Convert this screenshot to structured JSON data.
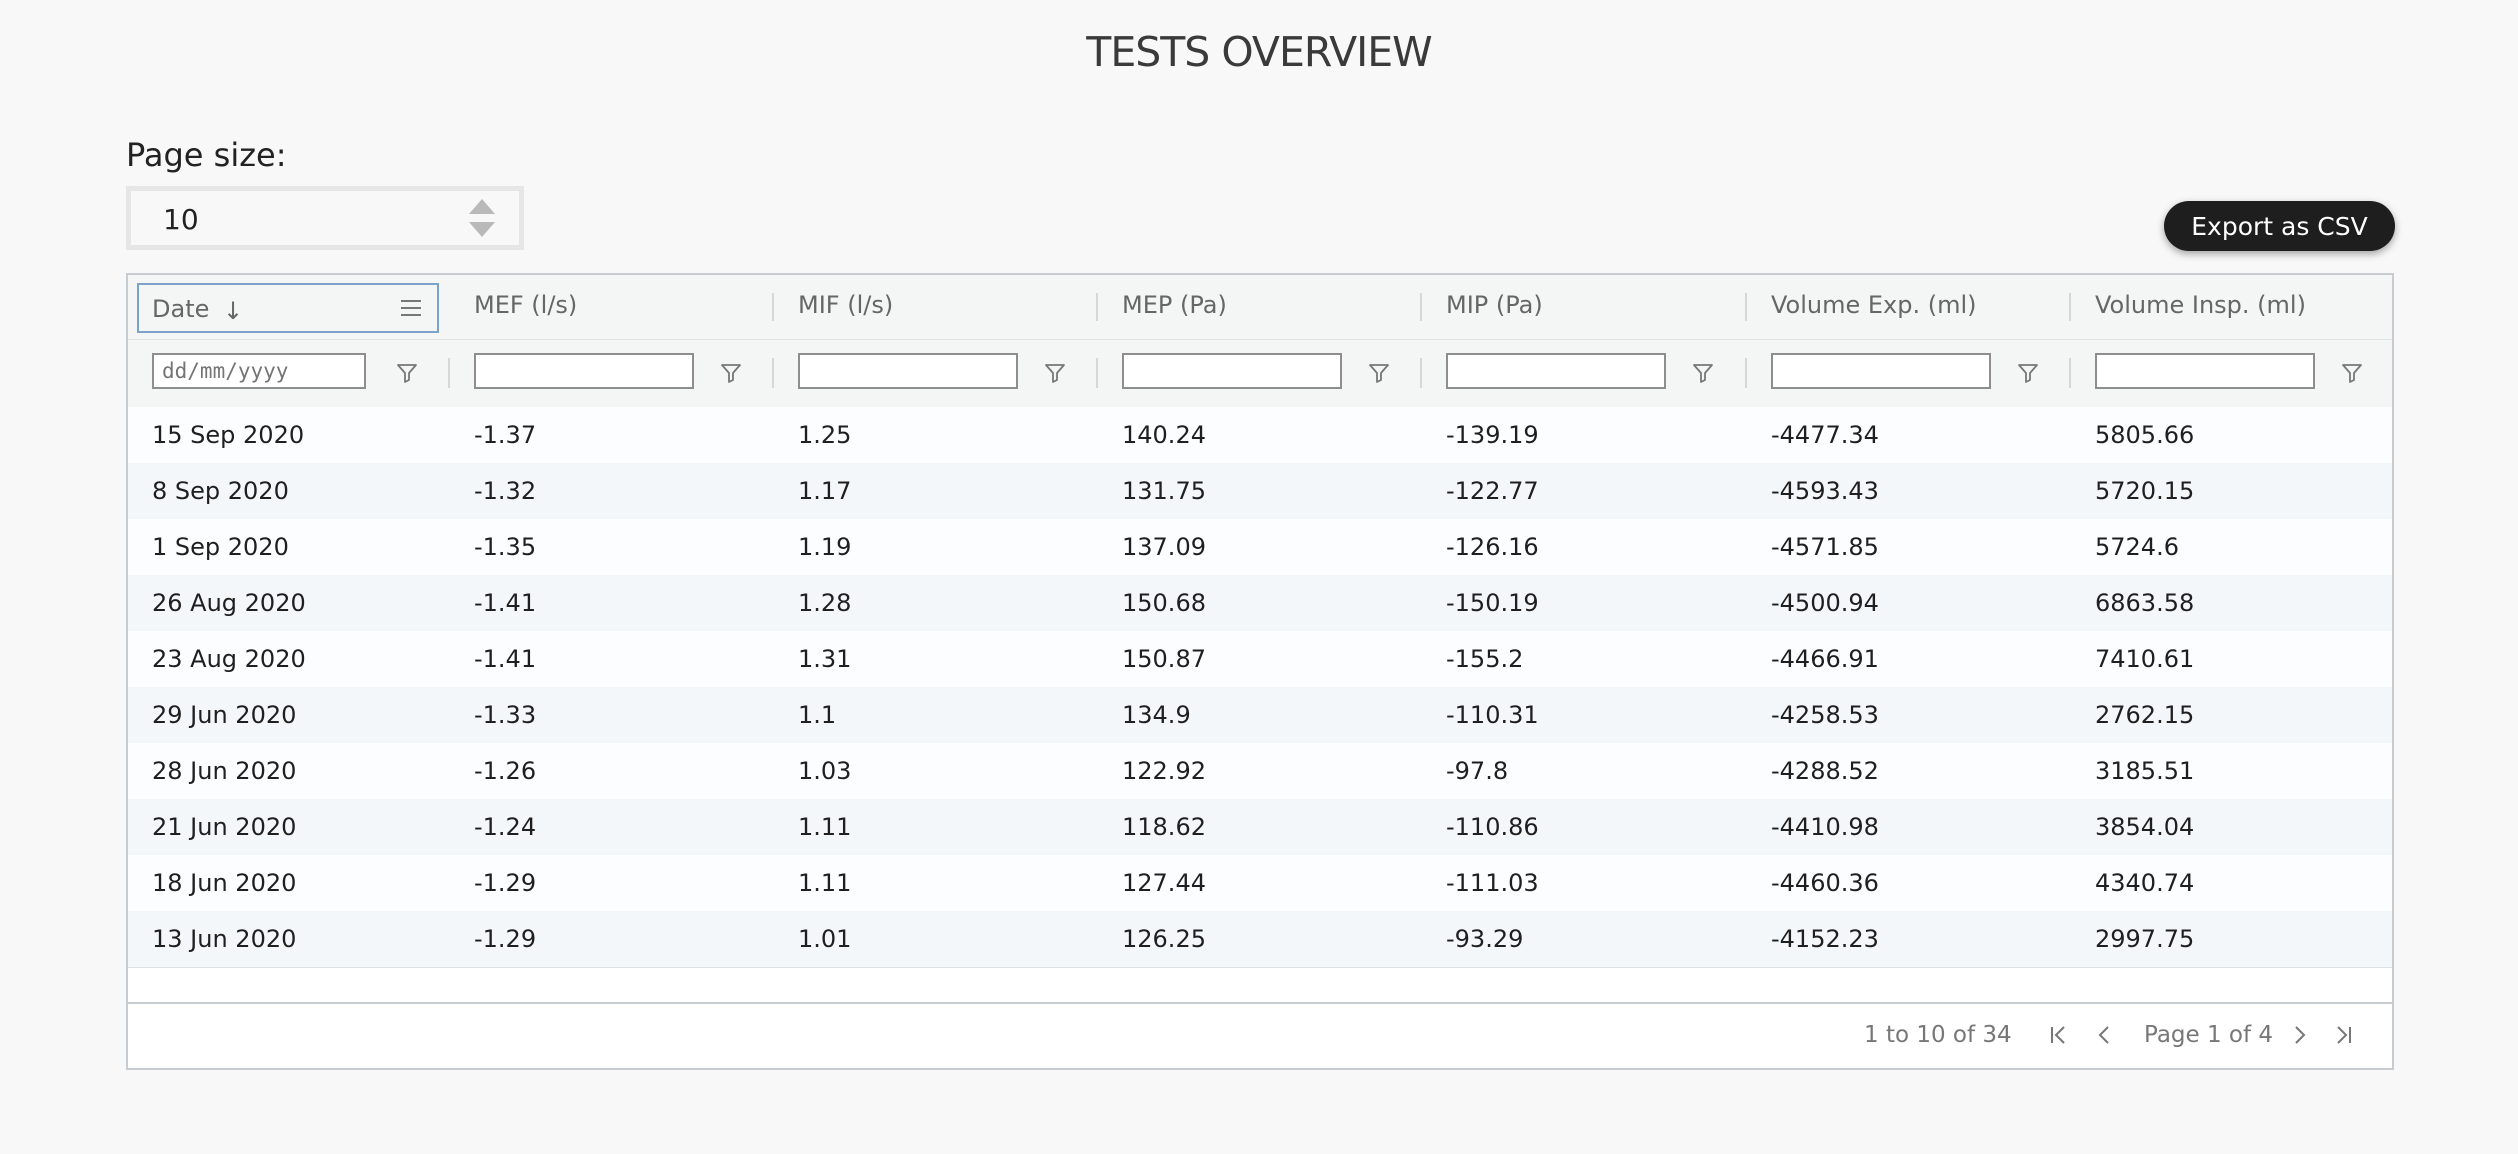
{
  "title": "TESTS OVERVIEW",
  "page_size": {
    "label": "Page size:",
    "value": "10"
  },
  "export_button": "Export as CSV",
  "columns": [
    {
      "label": "Date",
      "filter_placeholder": "dd/mm/yyyy"
    },
    {
      "label": "MEF (l/s)",
      "filter_placeholder": ""
    },
    {
      "label": "MIF (l/s)",
      "filter_placeholder": ""
    },
    {
      "label": "MEP (Pa)",
      "filter_placeholder": ""
    },
    {
      "label": "MIP (Pa)",
      "filter_placeholder": ""
    },
    {
      "label": "Volume Exp. (ml)",
      "filter_placeholder": ""
    },
    {
      "label": "Volume Insp. (ml)",
      "filter_placeholder": ""
    }
  ],
  "rows": [
    [
      "15 Sep 2020",
      "-1.37",
      "1.25",
      "140.24",
      "-139.19",
      "-4477.34",
      "5805.66"
    ],
    [
      "8 Sep 2020",
      "-1.32",
      "1.17",
      "131.75",
      "-122.77",
      "-4593.43",
      "5720.15"
    ],
    [
      "1 Sep 2020",
      "-1.35",
      "1.19",
      "137.09",
      "-126.16",
      "-4571.85",
      "5724.6"
    ],
    [
      "26 Aug 2020",
      "-1.41",
      "1.28",
      "150.68",
      "-150.19",
      "-4500.94",
      "6863.58"
    ],
    [
      "23 Aug 2020",
      "-1.41",
      "1.31",
      "150.87",
      "-155.2",
      "-4466.91",
      "7410.61"
    ],
    [
      "29 Jun 2020",
      "-1.33",
      "1.1",
      "134.9",
      "-110.31",
      "-4258.53",
      "2762.15"
    ],
    [
      "28 Jun 2020",
      "-1.26",
      "1.03",
      "122.92",
      "-97.8",
      "-4288.52",
      "3185.51"
    ],
    [
      "21 Jun 2020",
      "-1.24",
      "1.11",
      "118.62",
      "-110.86",
      "-4410.98",
      "3854.04"
    ],
    [
      "18 Jun 2020",
      "-1.29",
      "1.11",
      "127.44",
      "-111.03",
      "-4460.36",
      "4340.74"
    ],
    [
      "13 Jun 2020",
      "-1.29",
      "1.01",
      "126.25",
      "-93.29",
      "-4152.23",
      "2997.75"
    ]
  ],
  "footer": {
    "summary": "1 to 10 of 34",
    "page_label": "Page 1 of 4"
  },
  "icons": {
    "sort": "arrow-down-icon",
    "menu": "menu-icon",
    "filter": "filter-icon",
    "first": "first-page-icon",
    "prev": "prev-page-icon",
    "next": "next-page-icon",
    "last": "last-page-icon"
  },
  "colors": {
    "button_bg": "#1e1e1e",
    "header_bg": "#f4f5f5",
    "focus_border": "#7ba3cc"
  }
}
